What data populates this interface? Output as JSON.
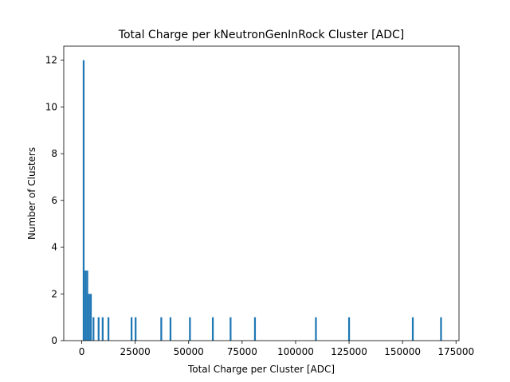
{
  "chart_data": {
    "type": "bar",
    "title": "Total Charge per kNeutronGenInRock Cluster [ADC]",
    "xlabel": "Total Charge per Cluster [ADC]",
    "ylabel": "Number of Clusters",
    "xlim": [
      -8400,
      176400
    ],
    "ylim": [
      0,
      12.6
    ],
    "xticks": [
      0,
      25000,
      50000,
      75000,
      100000,
      125000,
      150000,
      175000
    ],
    "xtick_labels": [
      "0",
      "25000",
      "50000",
      "75000",
      "100000",
      "125000",
      "150000",
      "175000"
    ],
    "yticks": [
      0,
      2,
      4,
      6,
      8,
      10,
      12
    ],
    "ytick_labels": [
      "0",
      "2",
      "4",
      "6",
      "8",
      "10",
      "12"
    ],
    "bin_width": 840,
    "grid": false,
    "bar_color": "#1f77b4",
    "bins": [
      {
        "x": 900,
        "count": 12
      },
      {
        "x": 1760,
        "count": 3
      },
      {
        "x": 2600,
        "count": 3
      },
      {
        "x": 3440,
        "count": 2
      },
      {
        "x": 4280,
        "count": 2
      },
      {
        "x": 5500,
        "count": 1
      },
      {
        "x": 7900,
        "count": 1
      },
      {
        "x": 9800,
        "count": 1
      },
      {
        "x": 12500,
        "count": 1
      },
      {
        "x": 23300,
        "count": 1
      },
      {
        "x": 25200,
        "count": 1
      },
      {
        "x": 37200,
        "count": 1
      },
      {
        "x": 41500,
        "count": 1
      },
      {
        "x": 50600,
        "count": 1
      },
      {
        "x": 61300,
        "count": 1
      },
      {
        "x": 69600,
        "count": 1
      },
      {
        "x": 81000,
        "count": 1
      },
      {
        "x": 109500,
        "count": 1
      },
      {
        "x": 125000,
        "count": 1
      },
      {
        "x": 154800,
        "count": 1
      },
      {
        "x": 168000,
        "count": 1
      }
    ]
  }
}
